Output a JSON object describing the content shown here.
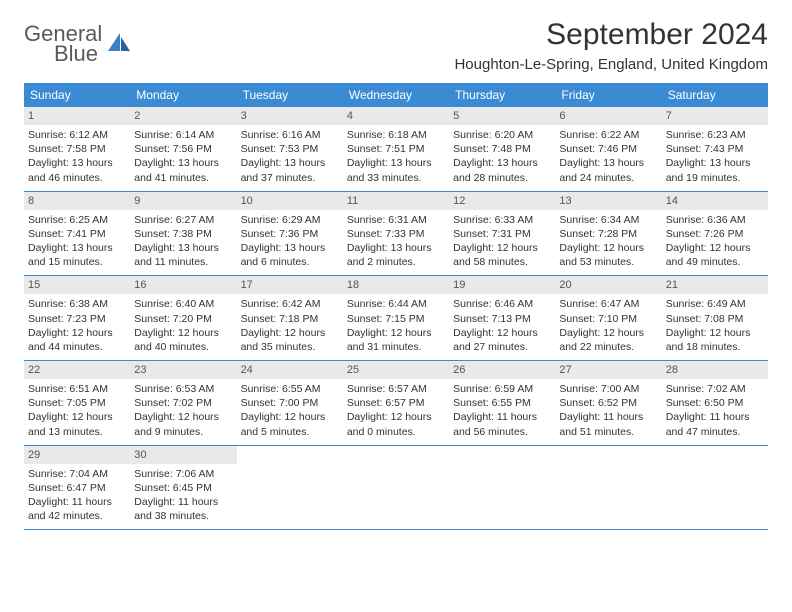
{
  "logo": {
    "text1": "General",
    "text2": "Blue"
  },
  "title": "September 2024",
  "location": "Houghton-Le-Spring, England, United Kingdom",
  "colors": {
    "header_bar": "#3b8bd4",
    "daynum_bg": "#e9e9e9",
    "week_border": "#3b8bd4",
    "text": "#333333",
    "logo_grey": "#5a5a5a",
    "logo_blue": "#3b7fc4"
  },
  "weekdays": [
    "Sunday",
    "Monday",
    "Tuesday",
    "Wednesday",
    "Thursday",
    "Friday",
    "Saturday"
  ],
  "weeks": [
    [
      {
        "n": "1",
        "sr": "Sunrise: 6:12 AM",
        "ss": "Sunset: 7:58 PM",
        "d1": "Daylight: 13 hours",
        "d2": "and 46 minutes."
      },
      {
        "n": "2",
        "sr": "Sunrise: 6:14 AM",
        "ss": "Sunset: 7:56 PM",
        "d1": "Daylight: 13 hours",
        "d2": "and 41 minutes."
      },
      {
        "n": "3",
        "sr": "Sunrise: 6:16 AM",
        "ss": "Sunset: 7:53 PM",
        "d1": "Daylight: 13 hours",
        "d2": "and 37 minutes."
      },
      {
        "n": "4",
        "sr": "Sunrise: 6:18 AM",
        "ss": "Sunset: 7:51 PM",
        "d1": "Daylight: 13 hours",
        "d2": "and 33 minutes."
      },
      {
        "n": "5",
        "sr": "Sunrise: 6:20 AM",
        "ss": "Sunset: 7:48 PM",
        "d1": "Daylight: 13 hours",
        "d2": "and 28 minutes."
      },
      {
        "n": "6",
        "sr": "Sunrise: 6:22 AM",
        "ss": "Sunset: 7:46 PM",
        "d1": "Daylight: 13 hours",
        "d2": "and 24 minutes."
      },
      {
        "n": "7",
        "sr": "Sunrise: 6:23 AM",
        "ss": "Sunset: 7:43 PM",
        "d1": "Daylight: 13 hours",
        "d2": "and 19 minutes."
      }
    ],
    [
      {
        "n": "8",
        "sr": "Sunrise: 6:25 AM",
        "ss": "Sunset: 7:41 PM",
        "d1": "Daylight: 13 hours",
        "d2": "and 15 minutes."
      },
      {
        "n": "9",
        "sr": "Sunrise: 6:27 AM",
        "ss": "Sunset: 7:38 PM",
        "d1": "Daylight: 13 hours",
        "d2": "and 11 minutes."
      },
      {
        "n": "10",
        "sr": "Sunrise: 6:29 AM",
        "ss": "Sunset: 7:36 PM",
        "d1": "Daylight: 13 hours",
        "d2": "and 6 minutes."
      },
      {
        "n": "11",
        "sr": "Sunrise: 6:31 AM",
        "ss": "Sunset: 7:33 PM",
        "d1": "Daylight: 13 hours",
        "d2": "and 2 minutes."
      },
      {
        "n": "12",
        "sr": "Sunrise: 6:33 AM",
        "ss": "Sunset: 7:31 PM",
        "d1": "Daylight: 12 hours",
        "d2": "and 58 minutes."
      },
      {
        "n": "13",
        "sr": "Sunrise: 6:34 AM",
        "ss": "Sunset: 7:28 PM",
        "d1": "Daylight: 12 hours",
        "d2": "and 53 minutes."
      },
      {
        "n": "14",
        "sr": "Sunrise: 6:36 AM",
        "ss": "Sunset: 7:26 PM",
        "d1": "Daylight: 12 hours",
        "d2": "and 49 minutes."
      }
    ],
    [
      {
        "n": "15",
        "sr": "Sunrise: 6:38 AM",
        "ss": "Sunset: 7:23 PM",
        "d1": "Daylight: 12 hours",
        "d2": "and 44 minutes."
      },
      {
        "n": "16",
        "sr": "Sunrise: 6:40 AM",
        "ss": "Sunset: 7:20 PM",
        "d1": "Daylight: 12 hours",
        "d2": "and 40 minutes."
      },
      {
        "n": "17",
        "sr": "Sunrise: 6:42 AM",
        "ss": "Sunset: 7:18 PM",
        "d1": "Daylight: 12 hours",
        "d2": "and 35 minutes."
      },
      {
        "n": "18",
        "sr": "Sunrise: 6:44 AM",
        "ss": "Sunset: 7:15 PM",
        "d1": "Daylight: 12 hours",
        "d2": "and 31 minutes."
      },
      {
        "n": "19",
        "sr": "Sunrise: 6:46 AM",
        "ss": "Sunset: 7:13 PM",
        "d1": "Daylight: 12 hours",
        "d2": "and 27 minutes."
      },
      {
        "n": "20",
        "sr": "Sunrise: 6:47 AM",
        "ss": "Sunset: 7:10 PM",
        "d1": "Daylight: 12 hours",
        "d2": "and 22 minutes."
      },
      {
        "n": "21",
        "sr": "Sunrise: 6:49 AM",
        "ss": "Sunset: 7:08 PM",
        "d1": "Daylight: 12 hours",
        "d2": "and 18 minutes."
      }
    ],
    [
      {
        "n": "22",
        "sr": "Sunrise: 6:51 AM",
        "ss": "Sunset: 7:05 PM",
        "d1": "Daylight: 12 hours",
        "d2": "and 13 minutes."
      },
      {
        "n": "23",
        "sr": "Sunrise: 6:53 AM",
        "ss": "Sunset: 7:02 PM",
        "d1": "Daylight: 12 hours",
        "d2": "and 9 minutes."
      },
      {
        "n": "24",
        "sr": "Sunrise: 6:55 AM",
        "ss": "Sunset: 7:00 PM",
        "d1": "Daylight: 12 hours",
        "d2": "and 5 minutes."
      },
      {
        "n": "25",
        "sr": "Sunrise: 6:57 AM",
        "ss": "Sunset: 6:57 PM",
        "d1": "Daylight: 12 hours",
        "d2": "and 0 minutes."
      },
      {
        "n": "26",
        "sr": "Sunrise: 6:59 AM",
        "ss": "Sunset: 6:55 PM",
        "d1": "Daylight: 11 hours",
        "d2": "and 56 minutes."
      },
      {
        "n": "27",
        "sr": "Sunrise: 7:00 AM",
        "ss": "Sunset: 6:52 PM",
        "d1": "Daylight: 11 hours",
        "d2": "and 51 minutes."
      },
      {
        "n": "28",
        "sr": "Sunrise: 7:02 AM",
        "ss": "Sunset: 6:50 PM",
        "d1": "Daylight: 11 hours",
        "d2": "and 47 minutes."
      }
    ],
    [
      {
        "n": "29",
        "sr": "Sunrise: 7:04 AM",
        "ss": "Sunset: 6:47 PM",
        "d1": "Daylight: 11 hours",
        "d2": "and 42 minutes."
      },
      {
        "n": "30",
        "sr": "Sunrise: 7:06 AM",
        "ss": "Sunset: 6:45 PM",
        "d1": "Daylight: 11 hours",
        "d2": "and 38 minutes."
      },
      null,
      null,
      null,
      null,
      null
    ]
  ]
}
